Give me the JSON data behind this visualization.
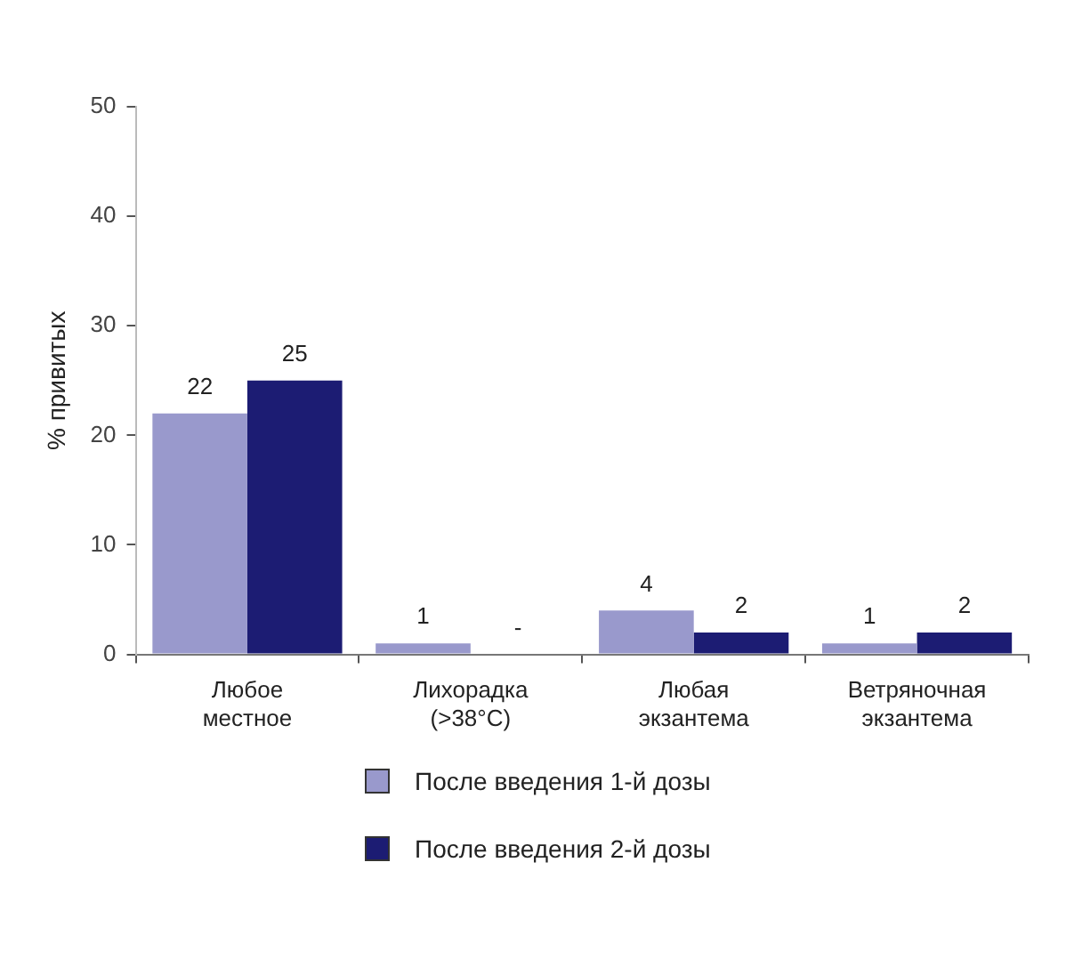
{
  "chart_data": {
    "type": "bar",
    "ylabel": "% привитых",
    "categories": [
      "Любое местное",
      "Лихорадка (>38°C)",
      "Любая экзантема",
      "Ветряночная экзантема"
    ],
    "series": [
      {
        "name": "После введения 1-й дозы",
        "color": "#9999cc",
        "values": [
          22,
          1,
          4,
          1
        ],
        "value_labels": [
          "22",
          "1",
          "4",
          "1"
        ]
      },
      {
        "name": "После введения 2-й дозы",
        "color": "#1c1c73",
        "values": [
          25,
          null,
          2,
          2
        ],
        "value_labels": [
          "25",
          "-",
          "2",
          "2"
        ]
      }
    ],
    "ylim": [
      0,
      50
    ],
    "yticks": [
      0,
      10,
      20,
      30,
      40,
      50
    ],
    "grid": false,
    "legend": "bottom"
  }
}
